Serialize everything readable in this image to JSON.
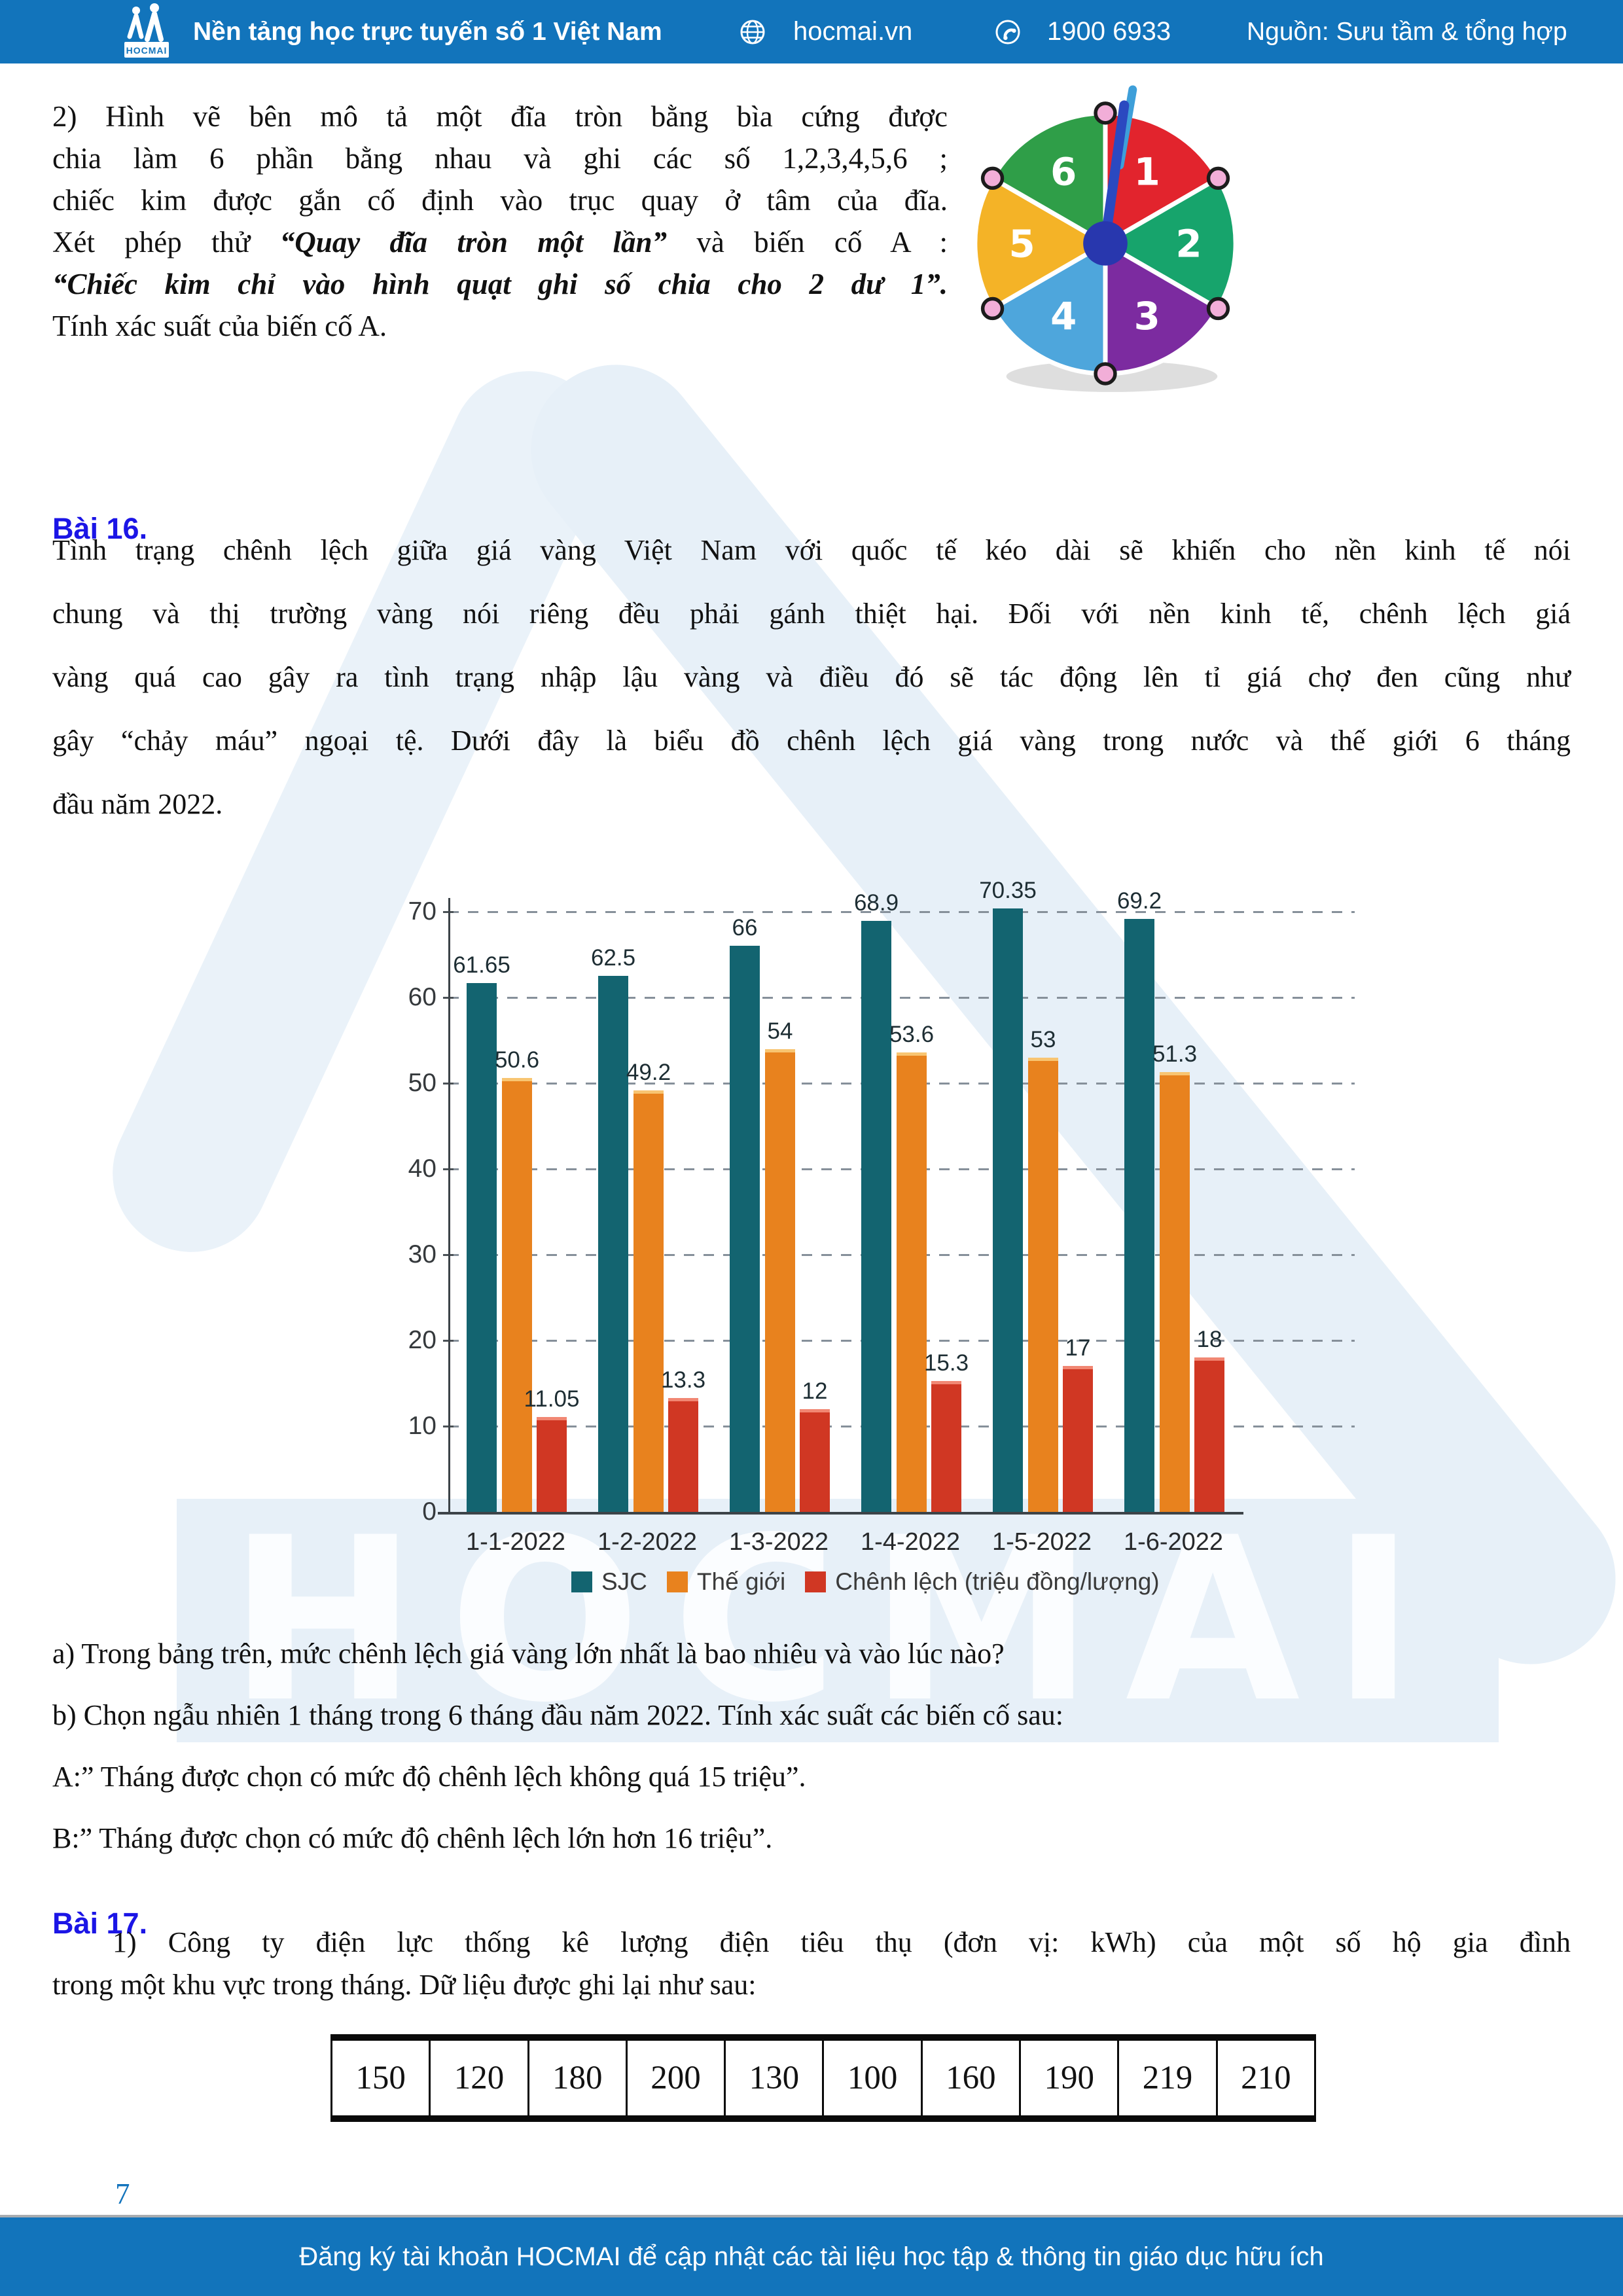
{
  "header": {
    "logo_text": "HOCMAI",
    "tagline": "Nền tảng học trực tuyến số 1 Việt Nam",
    "website": "hocmai.vn",
    "phone": "1900 6933",
    "source": "Nguồn: Sưu tầm & tổng hợp"
  },
  "watermark": {
    "text": "HOCMAI"
  },
  "problem2": {
    "lines": [
      [
        {
          "text": "2) Hình vẽ bên mô tả một đĩa tròn bằng bìa cứng được"
        }
      ],
      [
        {
          "text": "chia làm 6 phần bằng nhau và ghi các số 1,2,3,4,5,6 ;"
        }
      ],
      [
        {
          "text": "chiếc kim được gắn cố định vào trục quay ở tâm của đĩa."
        }
      ],
      [
        {
          "text": "Xét phép thử "
        },
        {
          "text": "“Quay đĩa tròn một lần”",
          "style": "bold-italic"
        },
        {
          "text": " và biến cố A :"
        }
      ],
      [
        {
          "text": "“Chiếc kim chỉ vào hình quạt ghi số chia cho 2 dư 1”.",
          "style": "bold-italic"
        }
      ],
      [
        {
          "text": "Tính xác suất của biến cố A."
        }
      ]
    ]
  },
  "spinner": {
    "sectors": [
      {
        "label": "1",
        "color": "#E2242D"
      },
      {
        "label": "2",
        "color": "#17A46C"
      },
      {
        "label": "3",
        "color": "#7C2BA0"
      },
      {
        "label": "4",
        "color": "#4EA6DC"
      },
      {
        "label": "5",
        "color": "#F4B327"
      },
      {
        "label": "6",
        "color": "#2F9E48"
      }
    ],
    "pin_color": "#F2AED8",
    "needle_dark": "#2B49C0",
    "needle_light": "#3E9FD9",
    "hub_color": "#2837AE"
  },
  "bai16": {
    "title": "Bài 16.",
    "lines": [
      "Tình trạng chênh lệch giữa giá vàng Việt Nam với quốc tế kéo dài sẽ khiến cho nền kinh tế nói",
      "chung và thị trường vàng nói riêng đều phải gánh thiệt hại. Đối với nền kinh tế, chênh lệch giá",
      "vàng quá cao gây ra tình trạng nhập lậu vàng và điều đó sẽ tác động lên tỉ giá chợ đen cũng như",
      "gây “chảy máu” ngoại tệ. Dưới đây là biểu đồ chênh lệch giá vàng trong nước và thế giới 6 tháng",
      "đầu năm 2022."
    ],
    "questions": [
      "a) Trong bảng trên, mức chênh lệch giá vàng lớn nhất là bao nhiêu và vào lúc nào?",
      "b) Chọn ngẫu nhiên 1 tháng trong 6 tháng đầu năm 2022. Tính xác suất các biến cố sau:",
      "A:” Tháng được chọn có mức độ chênh lệch không quá 15 triệu”.",
      "B:” Tháng được chọn có mức độ chênh lệch lớn hơn 16 triệu”."
    ]
  },
  "chart_data": {
    "type": "bar",
    "categories": [
      "1-1-2022",
      "1-2-2022",
      "1-3-2022",
      "1-4-2022",
      "1-5-2022",
      "1-6-2022"
    ],
    "series": [
      {
        "name": "SJC",
        "color": "#136470",
        "values": [
          61.65,
          62.5,
          66,
          68.9,
          70.35,
          69.2
        ]
      },
      {
        "name": "Thế giới",
        "color": "#E8821E",
        "values": [
          50.6,
          49.2,
          54,
          53.6,
          53,
          51.3
        ]
      },
      {
        "name": "Chênh lệch (triệu đồng/lượng)",
        "color": "#D03723",
        "values": [
          11.05,
          13.3,
          12,
          15.3,
          17,
          18
        ]
      }
    ],
    "yticks": [
      0,
      10,
      20,
      30,
      40,
      50,
      60,
      70
    ],
    "ylim": [
      0,
      75
    ],
    "title": "",
    "xlabel": "",
    "ylabel": "",
    "grid": "dashed-horizontal",
    "legend_position": "bottom",
    "value_labels": true
  },
  "bai17": {
    "title": "Bài 17.",
    "lines": [
      "1) Công ty điện lực thống kê lượng điện tiêu thụ (đơn vị: kWh) của một số hộ gia đình",
      "trong một khu vực trong tháng. Dữ liệu được ghi lại như sau:"
    ],
    "values": [
      "150",
      "120",
      "180",
      "200",
      "130",
      "100",
      "160",
      "190",
      "219",
      "210"
    ]
  },
  "page_number": "7",
  "footer": {
    "text": "Đăng ký tài khoản HOCMAI để cập nhật các tài liệu học tập & thông tin giáo dục hữu ích"
  }
}
